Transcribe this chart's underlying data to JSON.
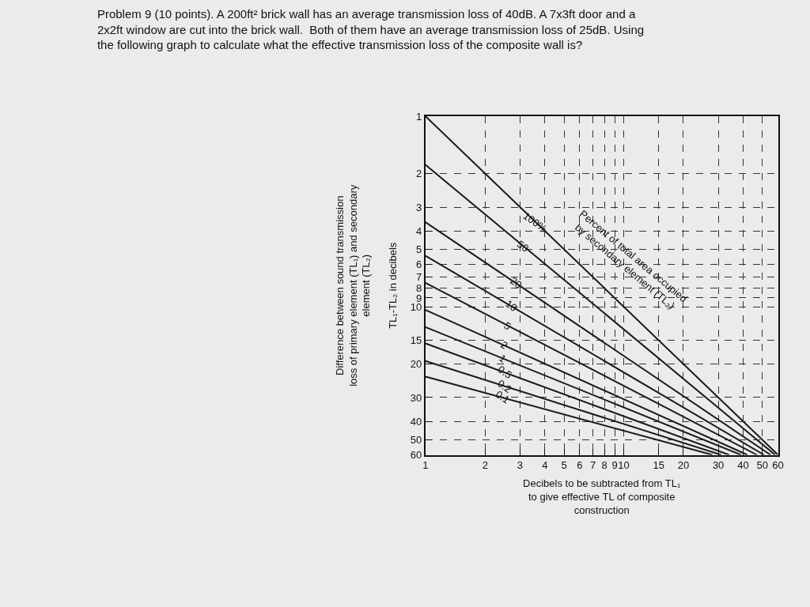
{
  "chart_data": {
    "type": "line",
    "title": "Problem 9 (10 points). A 200ft² brick wall has an average transmission loss of 40dB. A 7x3ft door and a\n2x2ft window are cut into the brick wall.  Both of them have an average transmission loss of 25dB. Using\nthe following graph to calculate what the effective transmission loss of the composite wall is?",
    "xlabel": "Decibels to be subtracted from TL₁\nto give effective TL of composite\nconstruction",
    "ylabel": "Difference between sound transmission\nloss of primary element (TL₁) and secondary\nelement (TL₂)\n\nTL₁-TL₂ in decibels",
    "log": "xy",
    "grid": true,
    "line_style": "solid",
    "marker": "none",
    "xlim": [
      1,
      60
    ],
    "ylim": [
      60,
      1
    ],
    "xticks": [
      1,
      2,
      3,
      4,
      5,
      6,
      7,
      8,
      9,
      10,
      15,
      20,
      30,
      40,
      50,
      60
    ],
    "yticks": [
      1,
      2,
      3,
      4,
      5,
      6,
      7,
      8,
      9,
      10,
      15,
      20,
      30,
      40,
      50,
      60
    ],
    "series": [
      {
        "color": "#1a1a1a",
        "x": [
          1,
          60
        ],
        "values": [
          1,
          60
        ]
      },
      {
        "color": "#1a1a1a",
        "x": [
          1,
          58
        ],
        "values": [
          1.8,
          60
        ]
      },
      {
        "color": "#1a1a1a",
        "x": [
          1,
          55
        ],
        "values": [
          3.6,
          60
        ]
      },
      {
        "color": "#1a1a1a",
        "x": [
          1,
          51
        ],
        "values": [
          5.4,
          60
        ]
      },
      {
        "color": "#1a1a1a",
        "x": [
          1,
          47
        ],
        "values": [
          7.5,
          60
        ]
      },
      {
        "color": "#1a1a1a",
        "x": [
          1,
          42
        ],
        "values": [
          10.4,
          60
        ]
      },
      {
        "color": "#1a1a1a",
        "x": [
          1,
          39
        ],
        "values": [
          12.8,
          60
        ]
      },
      {
        "color": "#1a1a1a",
        "x": [
          1,
          34
        ],
        "values": [
          15.6,
          60
        ]
      },
      {
        "color": "#1a1a1a",
        "x": [
          1,
          31
        ],
        "values": [
          19.3,
          60
        ]
      },
      {
        "color": "#1a1a1a",
        "x": [
          1,
          28
        ],
        "values": [
          23.3,
          60
        ]
      }
    ],
    "annotations": [
      {
        "text": "100%",
        "x": 3.6,
        "y": 3.6
      },
      {
        "text": "50",
        "x": 3.1,
        "y": 4.8
      },
      {
        "text": "20",
        "x": 2.85,
        "y": 7.5
      },
      {
        "text": "10",
        "x": 2.7,
        "y": 9.9
      },
      {
        "text": "5",
        "x": 2.6,
        "y": 12.6
      },
      {
        "text": "2",
        "x": 2.5,
        "y": 15.9
      },
      {
        "text": "1",
        "x": 2.45,
        "y": 18.7
      },
      {
        "text": "0.5",
        "x": 2.5,
        "y": 22.1
      },
      {
        "text": "0.2",
        "x": 2.5,
        "y": 26.1
      },
      {
        "text": "0.1",
        "x": 2.45,
        "y": 30
      },
      "Percent of total area occupied\nby secondary element (TL₂)"
    ]
  }
}
